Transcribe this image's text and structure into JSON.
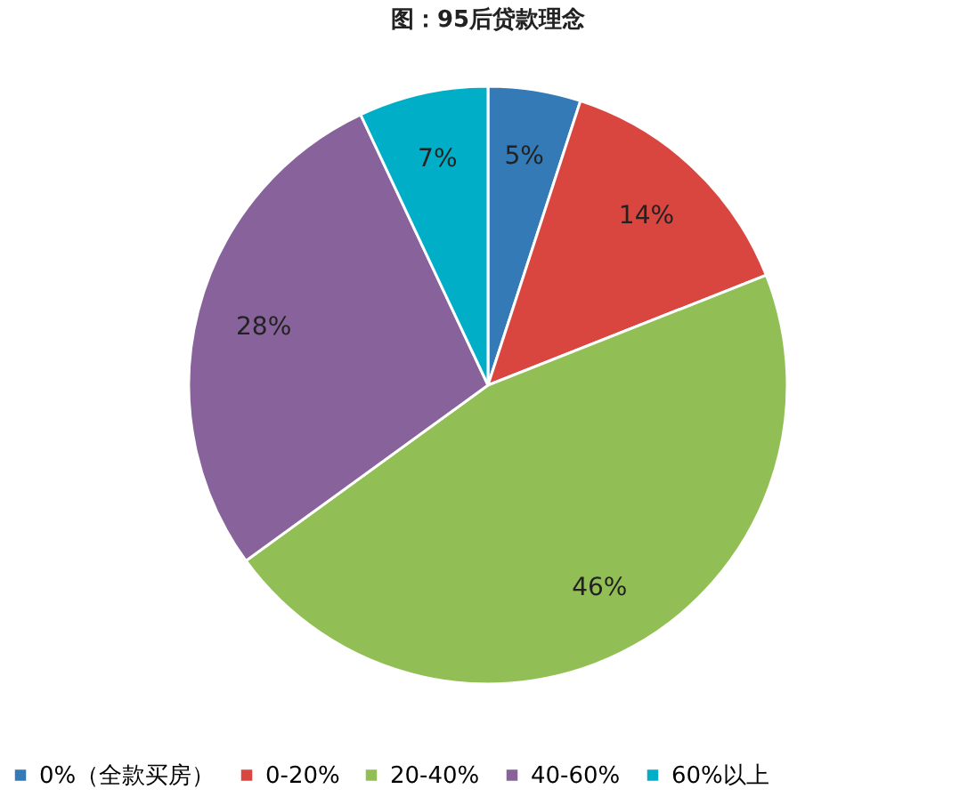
{
  "chart_data": {
    "type": "pie",
    "title": "图：95后贷款理念",
    "categories": [
      "0%（全款买房）",
      "0-20%",
      "20-40%",
      "40-60%",
      "60%以上"
    ],
    "values": [
      5,
      14,
      46,
      28,
      7
    ],
    "colors": [
      "#337ab7",
      "#d9463f",
      "#92bf55",
      "#87629b",
      "#00aec7"
    ],
    "value_labels": [
      "5%",
      "14%",
      "46%",
      "28%",
      "7%"
    ],
    "legend": "bottom"
  }
}
